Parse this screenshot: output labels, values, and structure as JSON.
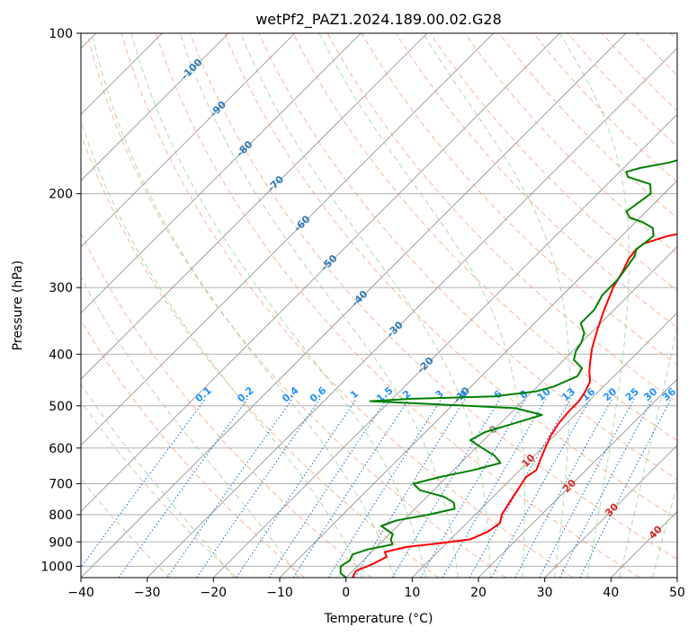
{
  "chart_data": {
    "type": "line",
    "chart_kind": "skew-T log-p diagram",
    "title": "wetPf2_PAZ1.2024.189.00.02.G28",
    "xlabel": "Temperature (°C)",
    "ylabel": "Pressure (hPa)",
    "xlim": [
      -40,
      50
    ],
    "ylim": [
      1050,
      100
    ],
    "y_scale": "log",
    "grid": true,
    "x_ticks": [
      -40,
      -30,
      -20,
      -10,
      0,
      10,
      20,
      30,
      40,
      50
    ],
    "y_ticks": [
      100,
      200,
      300,
      400,
      500,
      600,
      700,
      800,
      900,
      1000
    ],
    "series": [
      {
        "key": "temperature",
        "color": "#ff0000",
        "points": [
          [
            1050,
            1.0
          ],
          [
            1020,
            0.5
          ],
          [
            990,
            2.0
          ],
          [
            960,
            3.0
          ],
          [
            940,
            2.0
          ],
          [
            920,
            4.5
          ],
          [
            905,
            9.0
          ],
          [
            890,
            13.0
          ],
          [
            860,
            14.5
          ],
          [
            830,
            15.0
          ],
          [
            800,
            14.0
          ],
          [
            770,
            13.5
          ],
          [
            740,
            13.0
          ],
          [
            710,
            12.5
          ],
          [
            680,
            12.0
          ],
          [
            660,
            12.5
          ],
          [
            630,
            11.5
          ],
          [
            600,
            10.5
          ],
          [
            570,
            9.5
          ],
          [
            540,
            8.8
          ],
          [
            510,
            8.5
          ],
          [
            490,
            8.5
          ],
          [
            470,
            8.0
          ],
          [
            450,
            7.2
          ],
          [
            430,
            5.5
          ],
          [
            410,
            4.0
          ],
          [
            390,
            2.5
          ],
          [
            360,
            0.5
          ],
          [
            330,
            -1.5
          ],
          [
            300,
            -3.5
          ],
          [
            280,
            -4.5
          ],
          [
            265,
            -5.5
          ],
          [
            255,
            -5.8
          ],
          [
            248,
            -5.5
          ],
          [
            240,
            -3.0
          ],
          [
            230,
            3.0
          ],
          [
            215,
            12.0
          ],
          [
            200,
            18.0
          ],
          [
            185,
            20.0
          ],
          [
            170,
            22.5
          ],
          [
            150,
            25.0
          ],
          [
            130,
            29.5
          ],
          [
            115,
            31.5
          ],
          [
            105,
            34.5
          ],
          [
            100,
            37.0
          ]
        ]
      },
      {
        "key": "dewpoint",
        "color": "#008000",
        "points": [
          [
            1050,
            0.0
          ],
          [
            1030,
            -1.5
          ],
          [
            1000,
            -2.5
          ],
          [
            975,
            -2.0
          ],
          [
            950,
            -2.5
          ],
          [
            930,
            -1.0
          ],
          [
            910,
            2.0
          ],
          [
            890,
            1.0
          ],
          [
            870,
            0.5
          ],
          [
            840,
            -2.5
          ],
          [
            820,
            -1.0
          ],
          [
            800,
            3.0
          ],
          [
            780,
            6.0
          ],
          [
            760,
            5.0
          ],
          [
            740,
            2.5
          ],
          [
            720,
            -2.0
          ],
          [
            700,
            -4.0
          ],
          [
            680,
            -1.0
          ],
          [
            660,
            3.0
          ],
          [
            640,
            6.0
          ],
          [
            620,
            4.0
          ],
          [
            600,
            1.0
          ],
          [
            580,
            -2.0
          ],
          [
            560,
            -1.0
          ],
          [
            540,
            2.0
          ],
          [
            520,
            5.0
          ],
          [
            505,
            0.0
          ],
          [
            495,
            -15.0
          ],
          [
            490,
            -23.0
          ],
          [
            485,
            -17.0
          ],
          [
            480,
            -5.0
          ],
          [
            470,
            0.5
          ],
          [
            460,
            2.5
          ],
          [
            440,
            4.5
          ],
          [
            425,
            4.0
          ],
          [
            410,
            1.5
          ],
          [
            395,
            0.5
          ],
          [
            380,
            0.0
          ],
          [
            365,
            -1.0
          ],
          [
            350,
            -3.0
          ],
          [
            330,
            -3.0
          ],
          [
            310,
            -4.0
          ],
          [
            290,
            -4.0
          ],
          [
            275,
            -4.5
          ],
          [
            262,
            -5.0
          ],
          [
            254,
            -5.8
          ],
          [
            248,
            -5.5
          ],
          [
            240,
            -5.2
          ],
          [
            232,
            -6.5
          ],
          [
            226,
            -9.0
          ],
          [
            222,
            -11.5
          ],
          [
            216,
            -13.0
          ],
          [
            208,
            -12.5
          ],
          [
            200,
            -12.0
          ],
          [
            192,
            -13.5
          ],
          [
            186,
            -18.0
          ],
          [
            182,
            -19.0
          ],
          [
            179,
            -17.5
          ],
          [
            175,
            -14.0
          ],
          [
            168,
            -10.5
          ],
          [
            158,
            -8.5
          ],
          [
            140,
            -5.5
          ],
          [
            125,
            -2.5
          ],
          [
            112,
            0.0
          ],
          [
            102,
            2.5
          ],
          [
            100,
            3.0
          ]
        ]
      }
    ],
    "isotherms": [
      -100,
      -90,
      -80,
      -70,
      -60,
      -50,
      -40,
      -30,
      -20,
      -10,
      0,
      10,
      20,
      30,
      40,
      50
    ],
    "dry_adiabats": [
      -30,
      -20,
      -10,
      0,
      10,
      20,
      30,
      40,
      50,
      60,
      70,
      80,
      90,
      100,
      110,
      120,
      130,
      140,
      150,
      160,
      170,
      180,
      190,
      200
    ],
    "moist_adiabats": [
      -20,
      -10,
      0,
      5,
      10,
      15,
      20,
      25,
      30,
      35,
      40,
      45
    ],
    "isotherm_labels": [
      {
        "text": "-100",
        "p": 117
      },
      {
        "text": "-90",
        "p": 139
      },
      {
        "text": "-80",
        "p": 165
      },
      {
        "text": "-70",
        "p": 192
      },
      {
        "text": "-60",
        "p": 228
      },
      {
        "text": "-50",
        "p": 270
      },
      {
        "text": "-40",
        "p": 315
      },
      {
        "text": "-30",
        "p": 360
      },
      {
        "text": "-20",
        "p": 420
      },
      {
        "text": "-10",
        "p": 478
      },
      {
        "text": "0",
        "p": 555
      },
      {
        "text": "10",
        "p": 635
      },
      {
        "text": "20",
        "p": 708
      },
      {
        "text": "30",
        "p": 785
      },
      {
        "text": "40",
        "p": 865
      }
    ],
    "mixing_ratios": [
      {
        "text": "0.1",
        "w": 0.1
      },
      {
        "text": "0.2",
        "w": 0.2
      },
      {
        "text": "0.4",
        "w": 0.4
      },
      {
        "text": "0.6",
        "w": 0.6
      },
      {
        "text": "1",
        "w": 1
      },
      {
        "text": "1.5",
        "w": 1.5
      },
      {
        "text": "2",
        "w": 2
      },
      {
        "text": "3",
        "w": 3
      },
      {
        "text": "4",
        "w": 4
      },
      {
        "text": "6",
        "w": 6
      },
      {
        "text": "8",
        "w": 8
      },
      {
        "text": "10",
        "w": 10
      },
      {
        "text": "13",
        "w": 13
      },
      {
        "text": "16",
        "w": 16
      },
      {
        "text": "20",
        "w": 20
      },
      {
        "text": "25",
        "w": 25
      },
      {
        "text": "30",
        "w": 30
      },
      {
        "text": "36",
        "w": 36
      }
    ],
    "mixing_label_pressure": 485,
    "colors": {
      "isotherm_cold": "#2a7ab8",
      "isotherm_zero": "#8a8a8a",
      "isotherm_warm": "#d62728",
      "mixing_label": "#1e90ff",
      "mixing_line": "#1e74d8",
      "dry_adiabat": "#ff9b73",
      "moist_adiabat": "#8fc98f",
      "dry_adiabat_warm": "#d2b48c",
      "skew_isotherm": "#8c8c8c",
      "grid": "#b0b0b0",
      "temperature": "#ff0000",
      "dewpoint": "#008000"
    }
  }
}
